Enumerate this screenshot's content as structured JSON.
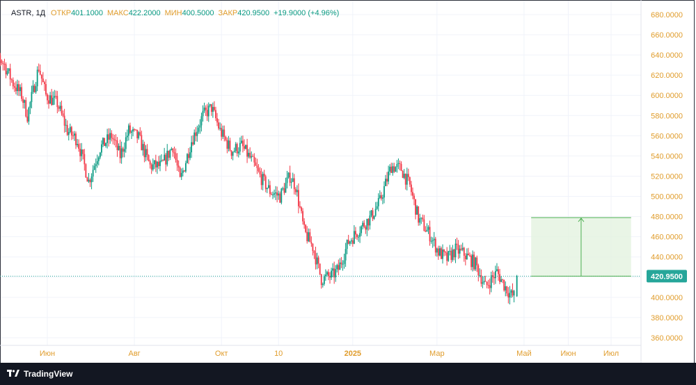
{
  "legend": {
    "symbol": "ASTR, 1Д",
    "open_label": "ОТКР",
    "open": "401.1000",
    "high_label": "МАКС",
    "high": "422.2000",
    "low_label": "МИН",
    "low": "400.5000",
    "close_label": "ЗАКР",
    "close": "420.9500",
    "change": "+19.9000 (+4.96%)"
  },
  "footer": {
    "brand": "TradingView"
  },
  "colors": {
    "up": "#089981",
    "down": "#f23645",
    "axis_text": "#e09c2b",
    "grid": "#f0f3fa",
    "price_badge": "#26a69a",
    "projection_fill": "#e4f3e0",
    "projection_line": "#4caf50"
  },
  "chart_data": {
    "type": "candlestick",
    "y_range": [
      350,
      685
    ],
    "y_ticks": [
      680,
      660,
      640,
      620,
      600,
      580,
      560,
      540,
      520,
      500,
      480,
      460,
      440,
      420,
      400,
      380,
      360
    ],
    "y_tick_labels": [
      "680.0000",
      "660.0000",
      "640.0000",
      "620.0000",
      "600.0000",
      "580.0000",
      "560.0000",
      "540.0000",
      "520.0000",
      "500.0000",
      "480.0000",
      "460.0000",
      "440.0000",
      "420.0000",
      "400.0000",
      "380.0000",
      "360.0000"
    ],
    "x_ticks": [
      {
        "label": "Июн",
        "date": "2024-06-01"
      },
      {
        "label": "Авг",
        "date": "2024-08-01"
      },
      {
        "label": "Окт",
        "date": "2024-10-01"
      },
      {
        "label": "10",
        "date": "2024-11-10"
      },
      {
        "label": "2025",
        "date": "2025-01-01"
      },
      {
        "label": "Мар",
        "date": "2025-03-01"
      },
      {
        "label": "Май",
        "date": "2025-05-01"
      },
      {
        "label": "Июн",
        "date": "2025-06-01"
      },
      {
        "label": "Июл",
        "date": "2025-07-01"
      }
    ],
    "last_price": 420.95,
    "last_price_label": "420.9500",
    "path": [
      [
        "2024-04-19",
        625
      ],
      [
        "2024-04-25",
        645
      ],
      [
        "2024-05-02",
        630
      ],
      [
        "2024-05-08",
        612
      ],
      [
        "2024-05-14",
        600
      ],
      [
        "2024-05-18",
        580
      ],
      [
        "2024-05-21",
        598
      ],
      [
        "2024-05-26",
        628
      ],
      [
        "2024-05-31",
        600
      ],
      [
        "2024-06-08",
        592
      ],
      [
        "2024-06-15",
        565
      ],
      [
        "2024-06-22",
        556
      ],
      [
        "2024-06-30",
        515
      ],
      [
        "2024-07-08",
        548
      ],
      [
        "2024-07-16",
        560
      ],
      [
        "2024-07-22",
        540
      ],
      [
        "2024-07-28",
        565
      ],
      [
        "2024-08-04",
        558
      ],
      [
        "2024-08-12",
        530
      ],
      [
        "2024-08-20",
        530
      ],
      [
        "2024-08-28",
        550
      ],
      [
        "2024-09-02",
        515
      ],
      [
        "2024-09-10",
        555
      ],
      [
        "2024-09-18",
        580
      ],
      [
        "2024-09-24",
        588
      ],
      [
        "2024-09-30",
        565
      ],
      [
        "2024-10-08",
        545
      ],
      [
        "2024-10-15",
        550
      ],
      [
        "2024-10-21",
        538
      ],
      [
        "2024-10-28",
        520
      ],
      [
        "2024-11-04",
        505
      ],
      [
        "2024-11-11",
        500
      ],
      [
        "2024-11-18",
        520
      ],
      [
        "2024-11-22",
        510
      ],
      [
        "2024-11-28",
        465
      ],
      [
        "2024-12-04",
        450
      ],
      [
        "2024-12-10",
        418
      ],
      [
        "2024-12-18",
        422
      ],
      [
        "2024-12-22",
        428
      ],
      [
        "2024-12-29",
        455
      ],
      [
        "2025-01-06",
        468
      ],
      [
        "2025-01-14",
        480
      ],
      [
        "2025-01-20",
        495
      ],
      [
        "2025-01-28",
        530
      ],
      [
        "2025-02-04",
        527
      ],
      [
        "2025-02-10",
        510
      ],
      [
        "2025-02-16",
        478
      ],
      [
        "2025-02-24",
        462
      ],
      [
        "2025-03-02",
        445
      ],
      [
        "2025-03-08",
        438
      ],
      [
        "2025-03-14",
        447
      ],
      [
        "2025-03-20",
        443
      ],
      [
        "2025-03-28",
        433
      ],
      [
        "2025-04-04",
        410
      ],
      [
        "2025-04-08",
        418
      ],
      [
        "2025-04-12",
        425
      ],
      [
        "2025-04-18",
        410
      ],
      [
        "2025-04-22",
        402
      ],
      [
        "2025-04-25",
        401.1
      ]
    ],
    "last_candle": {
      "date": "2025-04-26",
      "open": 401.1,
      "high": 422.2,
      "low": 400.5,
      "close": 420.95
    },
    "projection": {
      "start_date": "2025-05-06",
      "end_date": "2025-07-15",
      "from": 420.95,
      "to": 479
    }
  }
}
